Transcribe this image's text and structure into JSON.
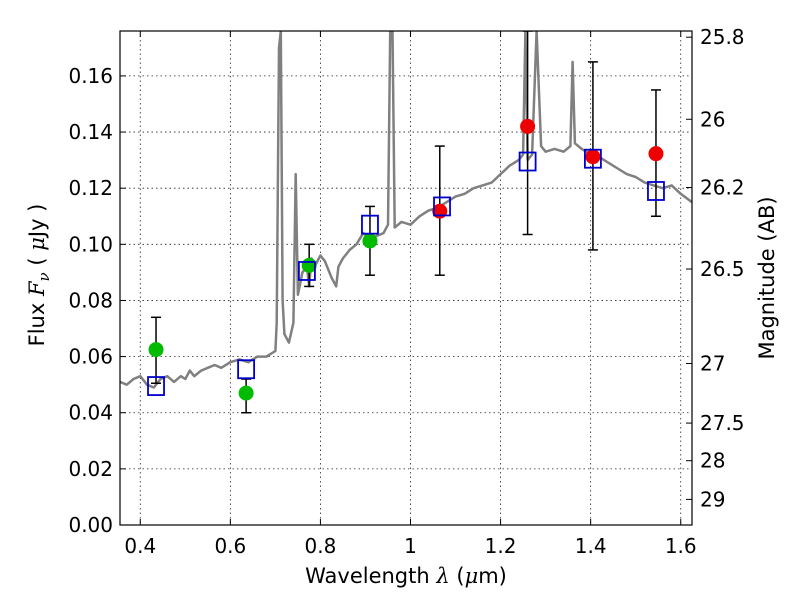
{
  "chart_data": {
    "type": "scatter",
    "xlabel_text": "Wavelength",
    "xlabel_symbol": "λ",
    "xlabel_unit_open": " (",
    "xlabel_unit_mu": "μ",
    "xlabel_unit_close": "m)",
    "ylabel_text": "Flux",
    "ylabel_symbol": "F",
    "ylabel_sub": "ν",
    "ylabel_unit_open": " ( ",
    "ylabel_unit_mu": "μ",
    "ylabel_unit_close": "Jy )",
    "y2label": "Magnitude (AB)",
    "xlim": [
      0.355,
      1.625
    ],
    "ylim": [
      0.0,
      0.176
    ],
    "grid": true,
    "x_ticks": [
      {
        "value": 0.4,
        "label": "0.4"
      },
      {
        "value": 0.6,
        "label": "0.6"
      },
      {
        "value": 0.8,
        "label": "0.8"
      },
      {
        "value": 1.0,
        "label": "1"
      },
      {
        "value": 1.2,
        "label": "1.2"
      },
      {
        "value": 1.4,
        "label": "1.4"
      },
      {
        "value": 1.6,
        "label": "1.6"
      }
    ],
    "y_ticks": [
      {
        "value": 0.0,
        "label": "0.00"
      },
      {
        "value": 0.02,
        "label": "0.02"
      },
      {
        "value": 0.04,
        "label": "0.04"
      },
      {
        "value": 0.06,
        "label": "0.06"
      },
      {
        "value": 0.08,
        "label": "0.08"
      },
      {
        "value": 0.1,
        "label": "0.10"
      },
      {
        "value": 0.12,
        "label": "0.12"
      },
      {
        "value": 0.14,
        "label": "0.14"
      },
      {
        "value": 0.16,
        "label": "0.16"
      }
    ],
    "y2_ticks": [
      {
        "mag": 25.8,
        "label": "25.8"
      },
      {
        "mag": 26,
        "label": "26"
      },
      {
        "mag": 26.2,
        "label": "26.2"
      },
      {
        "mag": 26.5,
        "label": "26.5"
      },
      {
        "mag": 27,
        "label": "27"
      },
      {
        "mag": 27.5,
        "label": "27.5"
      },
      {
        "mag": 28,
        "label": "28"
      },
      {
        "mag": 29,
        "label": "29"
      }
    ],
    "colors": {
      "model": "#808080",
      "green": "#00bb00",
      "red": "#ee0000",
      "square": "#0000cc",
      "errorbar": "#000000"
    },
    "model_spectrum": [
      [
        0.355,
        0.051
      ],
      [
        0.37,
        0.05
      ],
      [
        0.385,
        0.052
      ],
      [
        0.4,
        0.053
      ],
      [
        0.415,
        0.05
      ],
      [
        0.43,
        0.049
      ],
      [
        0.445,
        0.052
      ],
      [
        0.46,
        0.053
      ],
      [
        0.475,
        0.051
      ],
      [
        0.49,
        0.053
      ],
      [
        0.5,
        0.052
      ],
      [
        0.51,
        0.055
      ],
      [
        0.52,
        0.053
      ],
      [
        0.535,
        0.055
      ],
      [
        0.55,
        0.056
      ],
      [
        0.565,
        0.057
      ],
      [
        0.58,
        0.056
      ],
      [
        0.6,
        0.058
      ],
      [
        0.62,
        0.059
      ],
      [
        0.64,
        0.058
      ],
      [
        0.66,
        0.06
      ],
      [
        0.68,
        0.06
      ],
      [
        0.7,
        0.062
      ],
      [
        0.703,
        0.072
      ],
      [
        0.708,
        0.17
      ],
      [
        0.712,
        0.176
      ],
      [
        0.716,
        0.08
      ],
      [
        0.72,
        0.068
      ],
      [
        0.73,
        0.065
      ],
      [
        0.74,
        0.072
      ],
      [
        0.745,
        0.125
      ],
      [
        0.75,
        0.082
      ],
      [
        0.76,
        0.09
      ],
      [
        0.77,
        0.092
      ],
      [
        0.775,
        0.085
      ],
      [
        0.78,
        0.095
      ],
      [
        0.79,
        0.093
      ],
      [
        0.8,
        0.096
      ],
      [
        0.81,
        0.094
      ],
      [
        0.825,
        0.088
      ],
      [
        0.835,
        0.085
      ],
      [
        0.84,
        0.092
      ],
      [
        0.85,
        0.095
      ],
      [
        0.865,
        0.098
      ],
      [
        0.88,
        0.1
      ],
      [
        0.895,
        0.104
      ],
      [
        0.91,
        0.102
      ],
      [
        0.925,
        0.103
      ],
      [
        0.94,
        0.104
      ],
      [
        0.95,
        0.107
      ],
      [
        0.955,
        0.176
      ],
      [
        0.96,
        0.176
      ],
      [
        0.965,
        0.106
      ],
      [
        0.98,
        0.108
      ],
      [
        1.0,
        0.107
      ],
      [
        1.02,
        0.11
      ],
      [
        1.04,
        0.112
      ],
      [
        1.06,
        0.113
      ],
      [
        1.08,
        0.115
      ],
      [
        1.1,
        0.117
      ],
      [
        1.12,
        0.118
      ],
      [
        1.14,
        0.12
      ],
      [
        1.16,
        0.121
      ],
      [
        1.18,
        0.122
      ],
      [
        1.2,
        0.125
      ],
      [
        1.22,
        0.128
      ],
      [
        1.24,
        0.13
      ],
      [
        1.25,
        0.132
      ],
      [
        1.255,
        0.176
      ],
      [
        1.26,
        0.13
      ],
      [
        1.27,
        0.132
      ],
      [
        1.28,
        0.176
      ],
      [
        1.29,
        0.135
      ],
      [
        1.3,
        0.133
      ],
      [
        1.32,
        0.134
      ],
      [
        1.34,
        0.133
      ],
      [
        1.355,
        0.135
      ],
      [
        1.36,
        0.165
      ],
      [
        1.365,
        0.136
      ],
      [
        1.38,
        0.134
      ],
      [
        1.4,
        0.132
      ],
      [
        1.42,
        0.131
      ],
      [
        1.44,
        0.129
      ],
      [
        1.46,
        0.127
      ],
      [
        1.48,
        0.125
      ],
      [
        1.5,
        0.124
      ],
      [
        1.52,
        0.122
      ],
      [
        1.54,
        0.121
      ],
      [
        1.56,
        0.12
      ],
      [
        1.58,
        0.121
      ],
      [
        1.6,
        0.118
      ],
      [
        1.625,
        0.115
      ]
    ],
    "series": [
      {
        "marker": "circle",
        "color_key": "green",
        "points": [
          {
            "x": 0.435,
            "y": 0.0625,
            "err": [
              0.0505,
              0.074
            ]
          },
          {
            "x": 0.635,
            "y": 0.047,
            "err": [
              0.04,
              0.052
            ]
          },
          {
            "x": 0.775,
            "y": 0.0925,
            "err": [
              0.085,
              0.1
            ]
          },
          {
            "x": 0.91,
            "y": 0.1012,
            "err": [
              0.089,
              0.1135
            ]
          }
        ]
      },
      {
        "marker": "circle",
        "color_key": "red",
        "points": [
          {
            "x": 1.065,
            "y": 0.1118,
            "err": [
              0.089,
              0.135
            ]
          },
          {
            "x": 1.26,
            "y": 0.142,
            "err": [
              0.1035,
              0.176
            ]
          },
          {
            "x": 1.405,
            "y": 0.1312,
            "err": [
              0.098,
              0.165
            ]
          },
          {
            "x": 1.545,
            "y": 0.1323,
            "err": [
              0.11,
              0.155
            ]
          }
        ]
      },
      {
        "marker": "square",
        "color_key": "square",
        "points": [
          {
            "x": 0.435,
            "y": 0.0495
          },
          {
            "x": 0.635,
            "y": 0.0555
          },
          {
            "x": 0.77,
            "y": 0.0905
          },
          {
            "x": 0.91,
            "y": 0.107
          },
          {
            "x": 1.07,
            "y": 0.1135
          },
          {
            "x": 1.26,
            "y": 0.1295
          },
          {
            "x": 1.405,
            "y": 0.1305
          },
          {
            "x": 1.545,
            "y": 0.119
          }
        ]
      }
    ]
  }
}
